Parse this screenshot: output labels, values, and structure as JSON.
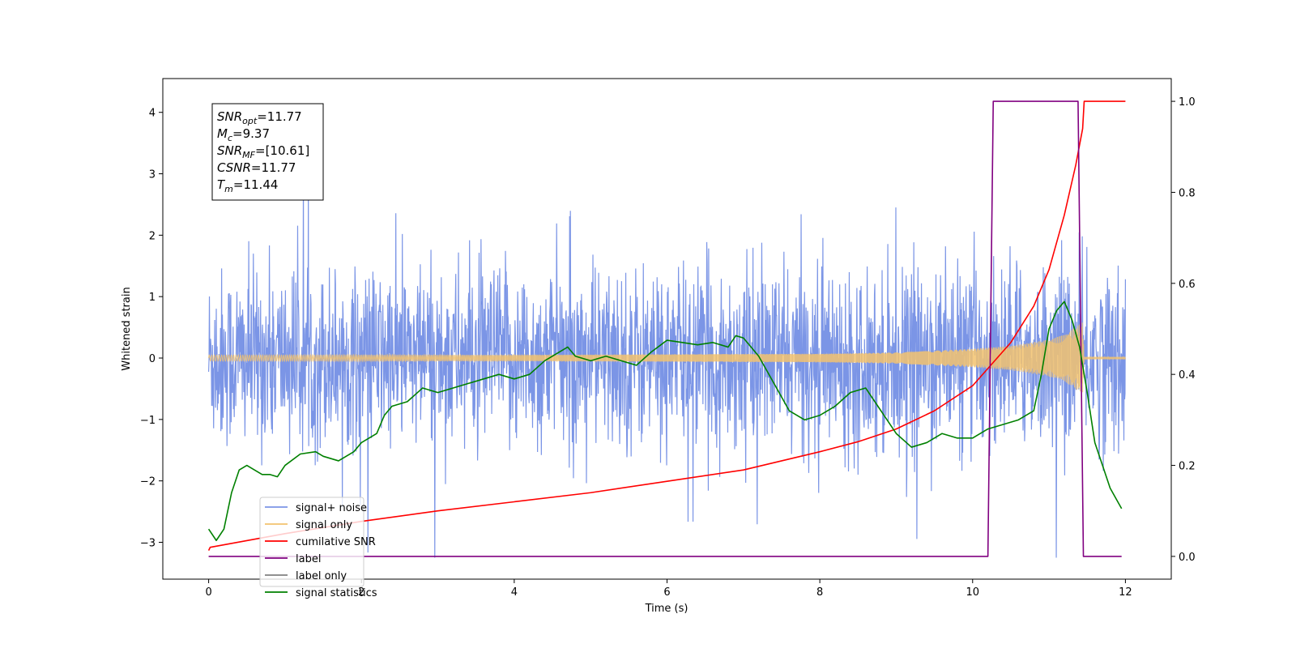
{
  "chart_data": {
    "type": "line",
    "xlabel": "Time (s)",
    "ylabel": "Whitened strain",
    "xlim": [
      -0.6,
      12.6
    ],
    "ylim": [
      -3.6,
      4.55
    ],
    "y2lim": [
      -0.05,
      1.05
    ],
    "x_ticks": [
      "0",
      "2",
      "4",
      "6",
      "8",
      "10",
      "12"
    ],
    "x_tick_values": [
      0,
      2,
      4,
      6,
      8,
      10,
      12
    ],
    "y_ticks": [
      "−3",
      "−2",
      "−1",
      "0",
      "1",
      "2",
      "3",
      "4"
    ],
    "y_tick_values": [
      -3,
      -2,
      -1,
      0,
      1,
      2,
      3,
      4
    ],
    "y2_ticks": [
      "0.0",
      "0.2",
      "0.4",
      "0.6",
      "0.8",
      "1.0"
    ],
    "y2_tick_values": [
      0,
      0.2,
      0.4,
      0.6,
      0.8,
      1.0
    ],
    "annotation": [
      {
        "sym": "SNR",
        "sub": "opt",
        "value": "=11.77"
      },
      {
        "sym": "M",
        "sub": "c",
        "value": "=9.37"
      },
      {
        "sym": "SNR",
        "sub": "MF",
        "value": "=[10.61]"
      },
      {
        "sym": "CSNR",
        "sub": "",
        "value": "=11.77"
      },
      {
        "sym": "T",
        "sub": "m",
        "value": "=11.44"
      }
    ],
    "legend_placement": "lower-left",
    "series": [
      {
        "name": "signal+ noise",
        "axis": "left",
        "color": "#7b95e6",
        "description": "noisy whitened strain, roughly ±1.5 with spikes up to about 4.2 and down to about -3.3, sampled from 0 to 12 s"
      },
      {
        "name": "signal only",
        "axis": "left",
        "color": "#f3c36e",
        "envelope": {
          "x": [
            0,
            2,
            4,
            6,
            8,
            9,
            10,
            10.5,
            11,
            11.2,
            11.4,
            11.44,
            11.46,
            12
          ],
          "amplitude": [
            0.05,
            0.05,
            0.05,
            0.06,
            0.07,
            0.09,
            0.15,
            0.2,
            0.3,
            0.38,
            0.55,
            0.6,
            0.02,
            0.02
          ]
        }
      },
      {
        "name": "cumilative SNR",
        "axis": "right",
        "color": "#ff0000",
        "x": [
          0,
          0.02,
          1,
          2,
          3,
          4,
          5,
          6,
          7,
          8,
          8.5,
          9,
          9.5,
          10,
          10.5,
          10.8,
          11,
          11.2,
          11.35,
          11.44,
          11.46,
          12
        ],
        "values": [
          0.013,
          0.02,
          0.05,
          0.077,
          0.1,
          0.12,
          0.14,
          0.165,
          0.19,
          0.23,
          0.252,
          0.28,
          0.32,
          0.375,
          0.47,
          0.55,
          0.63,
          0.75,
          0.86,
          0.94,
          1.0,
          1.0
        ]
      },
      {
        "name": "label",
        "axis": "right",
        "color": "#800080",
        "x": [
          0,
          10.2,
          10.27,
          11.38,
          11.45,
          11.95
        ],
        "values": [
          0,
          0,
          1,
          1,
          0,
          0
        ]
      },
      {
        "name": "label only",
        "axis": "right",
        "color": "#808080",
        "hidden_in_plot": true
      },
      {
        "name": "signal statistics",
        "axis": "right",
        "color": "#008000",
        "x": [
          0,
          0.1,
          0.2,
          0.3,
          0.4,
          0.5,
          0.6,
          0.7,
          0.8,
          0.9,
          1.0,
          1.2,
          1.4,
          1.5,
          1.7,
          1.9,
          2.0,
          2.2,
          2.3,
          2.4,
          2.6,
          2.8,
          3.0,
          3.2,
          3.4,
          3.6,
          3.8,
          4.0,
          4.2,
          4.4,
          4.6,
          4.7,
          4.8,
          5.0,
          5.2,
          5.4,
          5.6,
          5.8,
          6.0,
          6.2,
          6.4,
          6.6,
          6.8,
          6.9,
          7.0,
          7.2,
          7.4,
          7.6,
          7.8,
          8.0,
          8.2,
          8.4,
          8.6,
          8.8,
          9.0,
          9.2,
          9.4,
          9.6,
          9.8,
          10.0,
          10.2,
          10.4,
          10.6,
          10.8,
          10.9,
          11.0,
          11.1,
          11.2,
          11.3,
          11.4,
          11.5,
          11.6,
          11.7,
          11.8,
          11.9,
          11.95
        ],
        "values": [
          0.06,
          0.035,
          0.06,
          0.14,
          0.19,
          0.2,
          0.19,
          0.18,
          0.18,
          0.175,
          0.2,
          0.225,
          0.23,
          0.22,
          0.21,
          0.23,
          0.25,
          0.27,
          0.31,
          0.33,
          0.34,
          0.37,
          0.36,
          0.37,
          0.38,
          0.39,
          0.4,
          0.39,
          0.4,
          0.43,
          0.45,
          0.46,
          0.44,
          0.43,
          0.44,
          0.43,
          0.42,
          0.45,
          0.475,
          0.47,
          0.465,
          0.47,
          0.46,
          0.485,
          0.48,
          0.44,
          0.38,
          0.32,
          0.3,
          0.31,
          0.33,
          0.36,
          0.37,
          0.32,
          0.27,
          0.24,
          0.25,
          0.27,
          0.26,
          0.26,
          0.28,
          0.29,
          0.3,
          0.32,
          0.4,
          0.5,
          0.54,
          0.56,
          0.52,
          0.46,
          0.36,
          0.25,
          0.2,
          0.15,
          0.12,
          0.105
        ]
      }
    ]
  }
}
